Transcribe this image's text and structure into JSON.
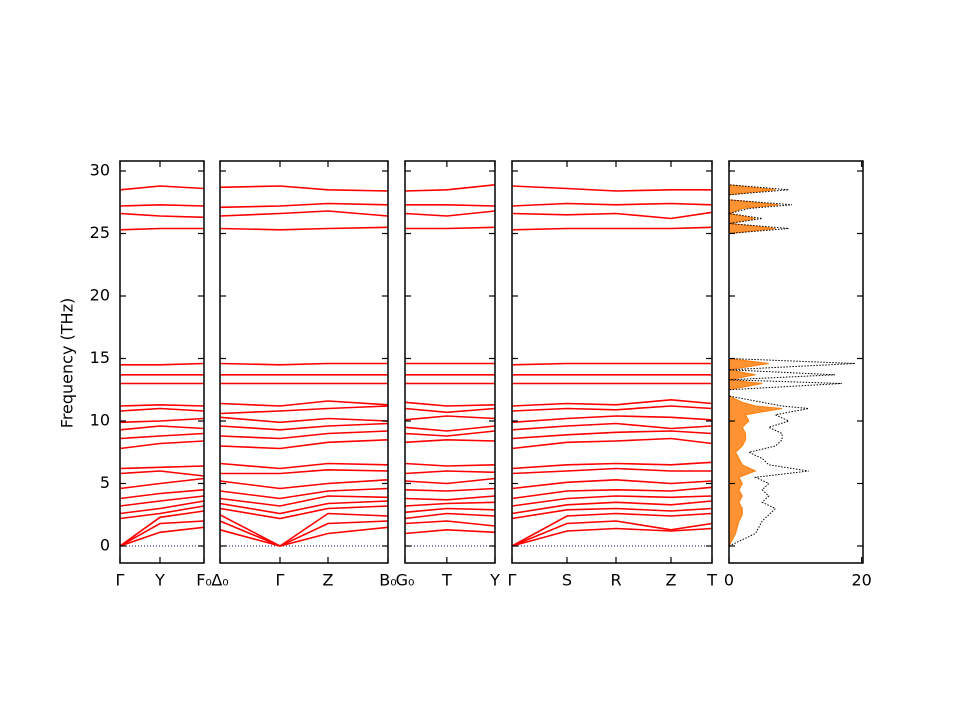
{
  "chart_data": [
    {
      "type": "bands",
      "ylabel": "Frequency (THz)",
      "color": "red",
      "zero_line_color": "#00008b",
      "show_ytick_labels": true,
      "ylim": [
        -1.36,
        30.8
      ],
      "yticks": [
        0,
        5,
        10,
        15,
        20,
        25,
        30
      ],
      "xlim": [
        0,
        2.1
      ],
      "xticks": [
        {
          "value": 0,
          "label": "Γ"
        },
        {
          "value": 1,
          "label": "Y"
        },
        {
          "value": 2.1,
          "label": "F₀"
        }
      ],
      "x": [
        0,
        1,
        2.1
      ],
      "series": [
        {
          "values": [
            0,
            1.1,
            1.5
          ]
        },
        {
          "values": [
            0,
            1.8,
            2.0
          ]
        },
        {
          "values": [
            0,
            2.3,
            2.8
          ]
        },
        {
          "values": [
            2.2,
            2.6,
            3.2
          ]
        },
        {
          "values": [
            2.6,
            3.0,
            3.6
          ]
        },
        {
          "values": [
            3.2,
            3.6,
            4.0
          ]
        },
        {
          "values": [
            3.8,
            4.2,
            4.5
          ]
        },
        {
          "values": [
            4.6,
            5.0,
            5.4
          ]
        },
        {
          "values": [
            5.8,
            6.0,
            5.6
          ]
        },
        {
          "values": [
            6.2,
            6.3,
            6.4
          ]
        },
        {
          "values": [
            7.8,
            8.2,
            8.4
          ]
        },
        {
          "values": [
            8.6,
            8.8,
            9.0
          ]
        },
        {
          "values": [
            9.3,
            9.6,
            9.4
          ]
        },
        {
          "values": [
            9.9,
            10.0,
            10.2
          ]
        },
        {
          "values": [
            10.8,
            11.0,
            10.8
          ]
        },
        {
          "values": [
            11.2,
            11.3,
            11.2
          ]
        },
        {
          "values": [
            13.0,
            13.0,
            13.0
          ]
        },
        {
          "values": [
            13.7,
            13.7,
            13.7
          ]
        },
        {
          "values": [
            14.5,
            14.5,
            14.6
          ]
        },
        {
          "values": [
            25.3,
            25.4,
            25.4
          ]
        },
        {
          "values": [
            26.6,
            26.4,
            26.3
          ]
        },
        {
          "values": [
            27.2,
            27.3,
            27.2
          ]
        },
        {
          "values": [
            28.5,
            28.8,
            28.6
          ]
        }
      ]
    },
    {
      "type": "bands",
      "color": "red",
      "zero_line_color": "#00008b",
      "show_ytick_labels": false,
      "ylim": [
        -1.36,
        30.8
      ],
      "yticks": [
        0,
        5,
        10,
        15,
        20,
        25,
        30
      ],
      "xlim": [
        0,
        3.5
      ],
      "xticks": [
        {
          "value": 0,
          "label": "Δ₀"
        },
        {
          "value": 1.25,
          "label": "Γ"
        },
        {
          "value": 2.25,
          "label": "Z"
        },
        {
          "value": 3.5,
          "label": "B₀"
        }
      ],
      "x": [
        0,
        1.25,
        2.25,
        3.5
      ],
      "series": [
        {
          "values": [
            1.3,
            0,
            1.0,
            1.5
          ]
        },
        {
          "values": [
            2.0,
            0,
            1.8,
            2.0
          ]
        },
        {
          "values": [
            2.5,
            0,
            2.6,
            2.4
          ]
        },
        {
          "values": [
            3.0,
            2.2,
            3.0,
            3.2
          ]
        },
        {
          "values": [
            3.4,
            2.6,
            3.4,
            3.6
          ]
        },
        {
          "values": [
            3.8,
            3.2,
            4.0,
            3.9
          ]
        },
        {
          "values": [
            4.4,
            3.8,
            4.4,
            4.6
          ]
        },
        {
          "values": [
            5.2,
            4.6,
            5.0,
            5.3
          ]
        },
        {
          "values": [
            5.8,
            5.8,
            6.1,
            6.0
          ]
        },
        {
          "values": [
            6.6,
            6.2,
            6.6,
            6.5
          ]
        },
        {
          "values": [
            8.0,
            7.8,
            8.3,
            8.5
          ]
        },
        {
          "values": [
            8.8,
            8.6,
            9.0,
            9.2
          ]
        },
        {
          "values": [
            9.6,
            9.3,
            9.6,
            9.8
          ]
        },
        {
          "values": [
            10.3,
            9.9,
            10.2,
            10.0
          ]
        },
        {
          "values": [
            10.6,
            10.8,
            11.0,
            11.2
          ]
        },
        {
          "values": [
            11.4,
            11.2,
            11.6,
            11.3
          ]
        },
        {
          "values": [
            13.0,
            13.0,
            13.0,
            13.0
          ]
        },
        {
          "values": [
            13.7,
            13.7,
            13.7,
            13.7
          ]
        },
        {
          "values": [
            14.6,
            14.5,
            14.6,
            14.6
          ]
        },
        {
          "values": [
            25.4,
            25.3,
            25.4,
            25.5
          ]
        },
        {
          "values": [
            26.4,
            26.6,
            26.8,
            26.4
          ]
        },
        {
          "values": [
            27.1,
            27.2,
            27.4,
            27.3
          ]
        },
        {
          "values": [
            28.7,
            28.8,
            28.5,
            28.4
          ]
        }
      ]
    },
    {
      "type": "bands",
      "color": "red",
      "zero_line_color": "#00008b",
      "show_ytick_labels": false,
      "ylim": [
        -1.36,
        30.8
      ],
      "yticks": [
        0,
        5,
        10,
        15,
        20,
        25,
        30
      ],
      "xlim": [
        0,
        2.15
      ],
      "xticks": [
        {
          "value": 0,
          "label": "G₀"
        },
        {
          "value": 1,
          "label": "T"
        },
        {
          "value": 2.15,
          "label": "Y"
        }
      ],
      "x": [
        0,
        1,
        2.15
      ],
      "series": [
        {
          "values": [
            1.0,
            1.3,
            1.1
          ]
        },
        {
          "values": [
            1.8,
            2.0,
            1.6
          ]
        },
        {
          "values": [
            2.2,
            2.6,
            2.4
          ]
        },
        {
          "values": [
            2.7,
            3.0,
            2.9
          ]
        },
        {
          "values": [
            3.2,
            3.4,
            3.5
          ]
        },
        {
          "values": [
            3.8,
            3.7,
            4.0
          ]
        },
        {
          "values": [
            4.5,
            4.4,
            4.6
          ]
        },
        {
          "values": [
            5.2,
            5.0,
            5.4
          ]
        },
        {
          "values": [
            5.8,
            6.0,
            5.9
          ]
        },
        {
          "values": [
            6.6,
            6.4,
            6.5
          ]
        },
        {
          "values": [
            8.3,
            8.5,
            8.4
          ]
        },
        {
          "values": [
            9.0,
            8.8,
            9.2
          ]
        },
        {
          "values": [
            9.5,
            9.2,
            9.6
          ]
        },
        {
          "values": [
            10.1,
            10.4,
            10.2
          ]
        },
        {
          "values": [
            11.0,
            10.7,
            11.0
          ]
        },
        {
          "values": [
            11.5,
            11.2,
            11.3
          ]
        },
        {
          "values": [
            13.0,
            13.0,
            13.0
          ]
        },
        {
          "values": [
            13.7,
            13.7,
            13.7
          ]
        },
        {
          "values": [
            14.6,
            14.6,
            14.6
          ]
        },
        {
          "values": [
            25.4,
            25.4,
            25.5
          ]
        },
        {
          "values": [
            26.6,
            26.4,
            26.8
          ]
        },
        {
          "values": [
            27.3,
            27.3,
            27.2
          ]
        },
        {
          "values": [
            28.4,
            28.5,
            28.9
          ]
        }
      ]
    },
    {
      "type": "bands",
      "color": "red",
      "zero_line_color": "#00008b",
      "show_ytick_labels": false,
      "ylim": [
        -1.36,
        30.8
      ],
      "yticks": [
        0,
        5,
        10,
        15,
        20,
        25,
        30
      ],
      "xlim": [
        0,
        4.0
      ],
      "xticks": [
        {
          "value": 0,
          "label": "Γ"
        },
        {
          "value": 1.1,
          "label": "S"
        },
        {
          "value": 2.08,
          "label": "R"
        },
        {
          "value": 3.18,
          "label": "Z"
        },
        {
          "value": 4.0,
          "label": "T"
        }
      ],
      "x": [
        0,
        1.1,
        2.08,
        3.18,
        4.0
      ],
      "series": [
        {
          "values": [
            0,
            1.2,
            1.4,
            1.2,
            1.4
          ]
        },
        {
          "values": [
            0,
            1.8,
            2.0,
            1.3,
            1.8
          ]
        },
        {
          "values": [
            0,
            2.4,
            2.6,
            2.4,
            2.6
          ]
        },
        {
          "values": [
            2.2,
            2.9,
            3.0,
            2.8,
            3.0
          ]
        },
        {
          "values": [
            2.6,
            3.3,
            3.5,
            3.3,
            3.6
          ]
        },
        {
          "values": [
            3.2,
            3.8,
            4.0,
            3.9,
            4.0
          ]
        },
        {
          "values": [
            3.8,
            4.4,
            4.5,
            4.4,
            4.7
          ]
        },
        {
          "values": [
            4.6,
            5.1,
            5.3,
            5.0,
            5.2
          ]
        },
        {
          "values": [
            5.8,
            6.0,
            6.2,
            6.0,
            6.0
          ]
        },
        {
          "values": [
            6.2,
            6.5,
            6.6,
            6.5,
            6.7
          ]
        },
        {
          "values": [
            7.8,
            8.3,
            8.4,
            8.6,
            8.2
          ]
        },
        {
          "values": [
            8.6,
            8.9,
            9.1,
            9.2,
            9.0
          ]
        },
        {
          "values": [
            9.3,
            9.6,
            9.8,
            9.4,
            9.6
          ]
        },
        {
          "values": [
            9.9,
            10.2,
            10.4,
            10.3,
            10.1
          ]
        },
        {
          "values": [
            10.8,
            11.0,
            10.9,
            11.2,
            11.0
          ]
        },
        {
          "values": [
            11.2,
            11.4,
            11.3,
            11.7,
            11.4
          ]
        },
        {
          "values": [
            13.0,
            13.0,
            13.0,
            13.0,
            13.0
          ]
        },
        {
          "values": [
            13.7,
            13.7,
            13.7,
            13.7,
            13.7
          ]
        },
        {
          "values": [
            14.5,
            14.6,
            14.6,
            14.6,
            14.6
          ]
        },
        {
          "values": [
            25.3,
            25.4,
            25.4,
            25.4,
            25.5
          ]
        },
        {
          "values": [
            26.6,
            26.5,
            26.6,
            26.2,
            26.7
          ]
        },
        {
          "values": [
            27.2,
            27.4,
            27.3,
            27.4,
            27.3
          ]
        },
        {
          "values": [
            28.8,
            28.6,
            28.4,
            28.5,
            28.5
          ]
        }
      ]
    },
    {
      "type": "dos",
      "show_ytick_labels": false,
      "ylim": [
        -1.36,
        30.8
      ],
      "yticks": [
        0,
        5,
        10,
        15,
        20,
        25,
        30
      ],
      "xlim": [
        0,
        20.2
      ],
      "xticks": [
        0,
        20
      ],
      "y": [
        0,
        1,
        2,
        2.5,
        3,
        3.5,
        4,
        4.5,
        5,
        5.5,
        6,
        6.5,
        7,
        7.5,
        8,
        8.5,
        9,
        9.5,
        10,
        10.5,
        11,
        11.2,
        11.5,
        12,
        12.5,
        13,
        13.3,
        13.7,
        14.1,
        14.6,
        15,
        25,
        25.4,
        25.8,
        26.2,
        26.6,
        27,
        27.3,
        27.7,
        28.1,
        28.5,
        28.9
      ],
      "series": [
        {
          "color": "#ff7f0e",
          "fill": true,
          "values": [
            0,
            1,
            1.5,
            2,
            2,
            1.5,
            2,
            1.5,
            2,
            1.5,
            4,
            2,
            1.5,
            1,
            2,
            2.5,
            2.5,
            2,
            3,
            2.5,
            8,
            4,
            2,
            0,
            0,
            5,
            0,
            4,
            0,
            6,
            0,
            0,
            7,
            0,
            4,
            0,
            2,
            7.5,
            0,
            0,
            7,
            0
          ]
        },
        {
          "color": "black",
          "fill": false,
          "values": [
            0,
            4,
            5,
            6,
            7,
            5,
            6,
            5,
            6,
            4,
            12,
            6,
            5,
            3,
            7,
            8,
            8,
            6,
            9,
            7,
            12,
            8,
            5,
            0,
            0,
            17,
            0,
            16,
            0,
            19,
            0,
            0,
            9,
            0,
            5,
            0,
            3,
            9.5,
            0,
            0,
            9,
            0
          ]
        }
      ]
    }
  ]
}
